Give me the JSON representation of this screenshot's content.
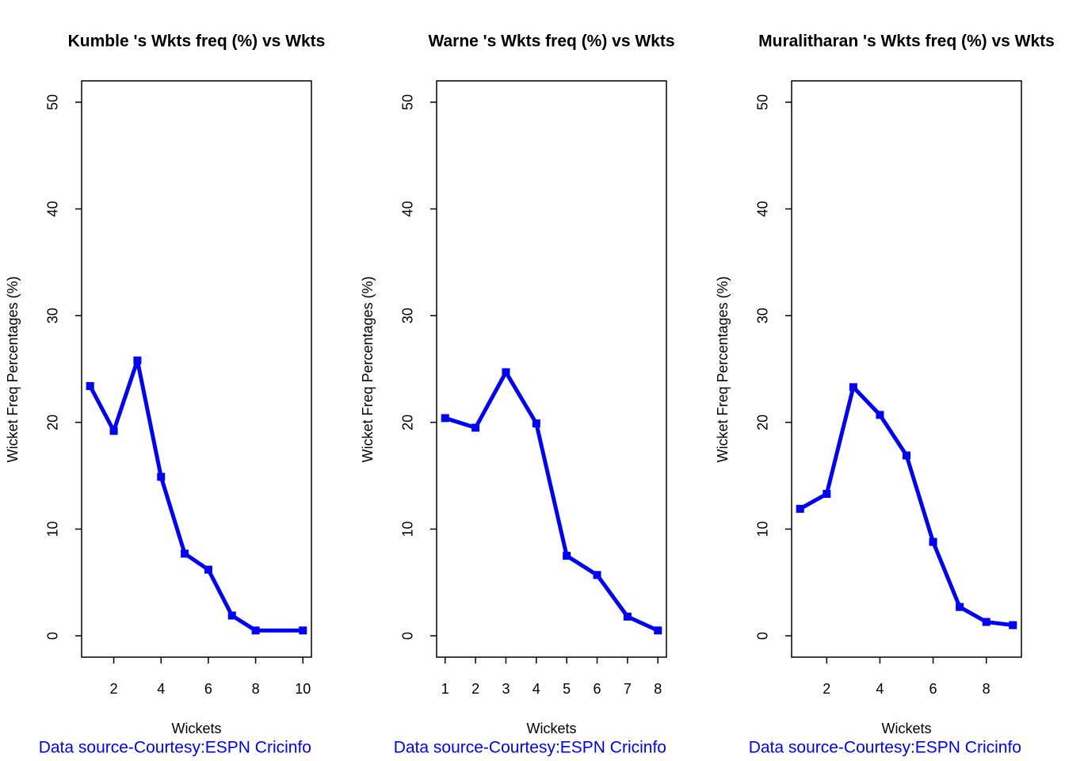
{
  "chart_data": [
    {
      "type": "line",
      "title": "Kumble 's Wkts freq (%) vs Wkts",
      "xlabel": "Wickets",
      "ylabel": "Wicket Freq Percentages (%)",
      "note": "Data source-Courtesy:ESPN Cricinfo",
      "x": [
        1,
        2,
        3,
        4,
        5,
        6,
        7,
        8,
        10
      ],
      "values": [
        23.4,
        19.2,
        25.8,
        14.9,
        7.7,
        6.2,
        1.9,
        0.5,
        0.5
      ],
      "color": "#0000ff",
      "xlim": [
        0.64,
        10.36
      ],
      "ylim": [
        -2,
        52
      ],
      "xticks": [
        2,
        4,
        6,
        8,
        10
      ],
      "yticks": [
        0,
        10,
        20,
        30,
        40,
        50
      ]
    },
    {
      "type": "line",
      "title": "Warne 's Wkts freq (%) vs Wkts",
      "xlabel": "Wickets",
      "ylabel": "Wicket Freq Percentages (%)",
      "note": "Data source-Courtesy:ESPN Cricinfo",
      "x": [
        1,
        2,
        3,
        4,
        5,
        6,
        7,
        8
      ],
      "values": [
        20.4,
        19.5,
        24.7,
        19.9,
        7.5,
        5.7,
        1.8,
        0.5
      ],
      "color": "#0000ff",
      "xlim": [
        0.72,
        8.28
      ],
      "ylim": [
        -2,
        52
      ],
      "xticks": [
        1,
        2,
        3,
        4,
        5,
        6,
        7,
        8
      ],
      "yticks": [
        0,
        10,
        20,
        30,
        40,
        50
      ]
    },
    {
      "type": "line",
      "title": "Muralitharan 's Wkts freq (%) vs Wkts",
      "xlabel": "Wickets",
      "ylabel": "Wicket Freq Percentages (%)",
      "note": "Data source-Courtesy:ESPN Cricinfo",
      "x": [
        1,
        2,
        3,
        4,
        5,
        6,
        7,
        8,
        9
      ],
      "values": [
        11.9,
        13.3,
        23.3,
        20.7,
        16.9,
        8.8,
        2.7,
        1.3,
        1.0
      ],
      "color": "#0000ff",
      "xlim": [
        0.68,
        9.32
      ],
      "ylim": [
        -2,
        52
      ],
      "xticks": [
        2,
        4,
        6,
        8
      ],
      "yticks": [
        0,
        10,
        20,
        30,
        40,
        50
      ]
    }
  ]
}
